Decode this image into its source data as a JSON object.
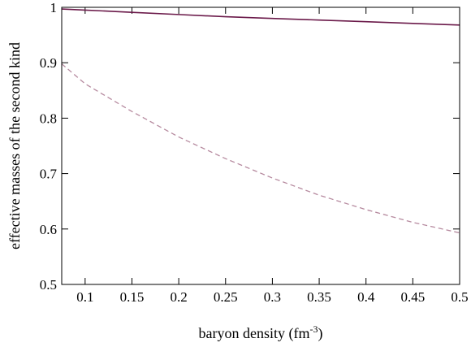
{
  "chart_data": {
    "type": "line",
    "xlabel": "baryon density (fm",
    "xlabel_sup": "-3",
    "xlabel_tail": ")",
    "ylabel": "effective masses of the second kind",
    "xlim": [
      0.075,
      0.5
    ],
    "ylim": [
      0.5,
      1.0
    ],
    "x_ticks": [
      0.1,
      0.15,
      0.2,
      0.25,
      0.3,
      0.35,
      0.4,
      0.45,
      0.5
    ],
    "x_tick_labels": [
      "0.1",
      "0.15",
      "0.2",
      "0.25",
      "0.3",
      "0.35",
      "0.4",
      "0.45",
      "0.5"
    ],
    "y_ticks": [
      0.5,
      0.6,
      0.7,
      0.8,
      0.9,
      1.0
    ],
    "y_tick_labels": [
      "0.5",
      "0.6",
      "0.7",
      "0.8",
      "0.9",
      "1"
    ],
    "grid": false,
    "series": [
      {
        "style": "solid",
        "color": "#6b1a4a",
        "x": [
          0.075,
          0.1,
          0.15,
          0.2,
          0.25,
          0.3,
          0.35,
          0.4,
          0.45,
          0.5
        ],
        "y": [
          0.997,
          0.995,
          0.991,
          0.987,
          0.983,
          0.98,
          0.977,
          0.974,
          0.971,
          0.968
        ]
      },
      {
        "style": "dashed",
        "color": "#b68a9f",
        "x": [
          0.075,
          0.1,
          0.15,
          0.2,
          0.25,
          0.3,
          0.35,
          0.4,
          0.45,
          0.5
        ],
        "y": [
          0.898,
          0.862,
          0.812,
          0.766,
          0.727,
          0.692,
          0.661,
          0.635,
          0.612,
          0.593
        ]
      }
    ]
  }
}
